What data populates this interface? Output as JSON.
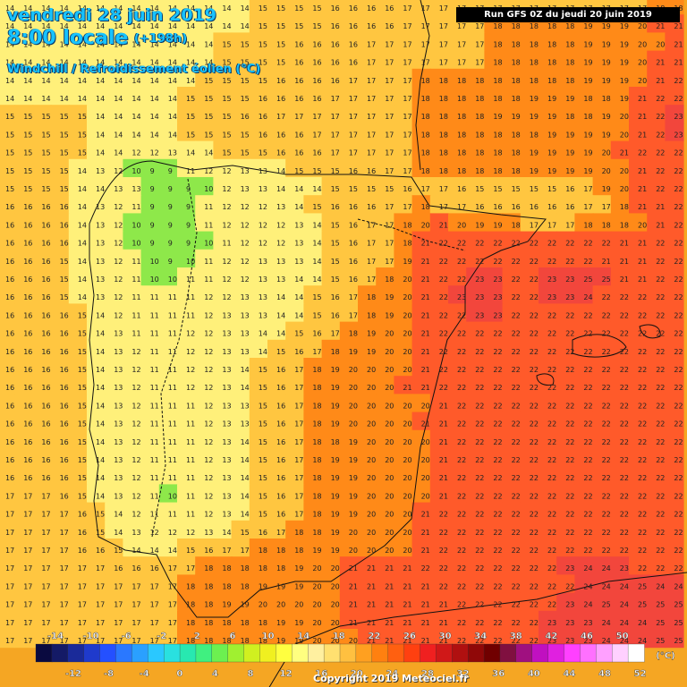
{
  "header": {
    "date": "vendredi 28 juin 2019",
    "time": "8:00 locale",
    "offset": "(+198h)",
    "variable": "Windchill / Refroidissement éolien (°C)",
    "run": "Run GFS 0Z du jeudi 20 juin 2019"
  },
  "legend": {
    "unit": "(°C)",
    "top_labels": [
      "-14",
      "-10",
      "-6",
      "-2",
      "2",
      "6",
      "10",
      "14",
      "18",
      "22",
      "26",
      "30",
      "34",
      "38",
      "42",
      "46",
      "50"
    ],
    "bottom_labels": [
      "-12",
      "-8",
      "-4",
      "0",
      "4",
      "8",
      "12",
      "16",
      "20",
      "24",
      "28",
      "32",
      "36",
      "40",
      "44",
      "48",
      "52"
    ],
    "colors": [
      "#0a0a40",
      "#141a66",
      "#1a2a99",
      "#1f3acc",
      "#2450ff",
      "#2a78ff",
      "#2aa0ff",
      "#2ac8ff",
      "#29e0e0",
      "#28e8b0",
      "#40f080",
      "#6cf050",
      "#a0f030",
      "#d0f020",
      "#f0f020",
      "#ffff40",
      "#ffff80",
      "#fff0a0",
      "#ffe070",
      "#ffc040",
      "#ffa020",
      "#ff8010",
      "#ff6010",
      "#ff4010",
      "#f02020",
      "#d01818",
      "#b01010",
      "#900808",
      "#700000",
      "#801040",
      "#a01080",
      "#c010c0",
      "#e020e0",
      "#ff40ff",
      "#ff70ff",
      "#ffa0ff",
      "#ffd0ff",
      "#ffffff"
    ]
  },
  "copyright": "Copyright 2019 Meteociel.fr",
  "map_colors": {
    "cold": "#8ee84a",
    "cool": "#fff07a",
    "mild": "#ffc640",
    "warm": "#ff8a18",
    "hot": "#ff5a2a",
    "sea_hot": "#f2463c"
  },
  "grid_values": [
    [
      14,
      14,
      14,
      14,
      14,
      14,
      14,
      14,
      14,
      14,
      14,
      14,
      14,
      14,
      15,
      15,
      15,
      15,
      16,
      16,
      16,
      16,
      17,
      17,
      17,
      17,
      17,
      17,
      17,
      17,
      17,
      17,
      17,
      17,
      17,
      17,
      18,
      18
    ],
    [
      14,
      14,
      14,
      14,
      14,
      14,
      14,
      14,
      14,
      14,
      14,
      14,
      14,
      14,
      15,
      15,
      15,
      15,
      16,
      16,
      16,
      16,
      17,
      17,
      17,
      17,
      17,
      18,
      18,
      18,
      18,
      18,
      19,
      19,
      19,
      20,
      21,
      21
    ],
    [
      14,
      14,
      14,
      14,
      14,
      14,
      14,
      14,
      14,
      14,
      14,
      14,
      15,
      15,
      15,
      15,
      16,
      16,
      16,
      16,
      17,
      17,
      17,
      17,
      17,
      17,
      17,
      18,
      18,
      18,
      18,
      18,
      19,
      19,
      19,
      20,
      20,
      21
    ],
    [
      14,
      14,
      14,
      14,
      14,
      14,
      14,
      14,
      14,
      14,
      14,
      14,
      15,
      15,
      15,
      15,
      16,
      16,
      16,
      16,
      17,
      17,
      17,
      17,
      17,
      17,
      17,
      18,
      18,
      18,
      18,
      18,
      19,
      19,
      19,
      20,
      21,
      21
    ],
    [
      14,
      14,
      14,
      14,
      14,
      14,
      14,
      14,
      14,
      14,
      14,
      15,
      15,
      15,
      15,
      16,
      16,
      16,
      16,
      17,
      17,
      17,
      17,
      18,
      18,
      18,
      18,
      18,
      18,
      18,
      18,
      18,
      19,
      19,
      19,
      20,
      21,
      22
    ],
    [
      14,
      14,
      14,
      14,
      14,
      14,
      14,
      14,
      14,
      14,
      15,
      15,
      15,
      15,
      16,
      16,
      16,
      16,
      17,
      17,
      17,
      17,
      17,
      18,
      18,
      18,
      18,
      18,
      18,
      19,
      19,
      19,
      18,
      18,
      19,
      21,
      22,
      22
    ],
    [
      15,
      15,
      15,
      15,
      15,
      14,
      14,
      14,
      14,
      14,
      15,
      15,
      15,
      16,
      16,
      17,
      17,
      17,
      17,
      17,
      17,
      17,
      17,
      18,
      18,
      18,
      18,
      19,
      19,
      19,
      19,
      18,
      18,
      19,
      20,
      21,
      22,
      23
    ],
    [
      15,
      15,
      15,
      15,
      15,
      14,
      14,
      14,
      14,
      14,
      15,
      15,
      15,
      15,
      16,
      16,
      16,
      17,
      17,
      17,
      17,
      17,
      17,
      18,
      18,
      18,
      18,
      18,
      18,
      18,
      19,
      19,
      19,
      19,
      20,
      21,
      22,
      23
    ],
    [
      15,
      15,
      15,
      15,
      15,
      14,
      14,
      12,
      12,
      13,
      14,
      14,
      15,
      15,
      15,
      16,
      16,
      16,
      17,
      17,
      17,
      17,
      17,
      18,
      18,
      18,
      18,
      18,
      18,
      19,
      19,
      19,
      19,
      20,
      21,
      22,
      22,
      22
    ],
    [
      15,
      15,
      15,
      15,
      14,
      13,
      12,
      10,
      9,
      9,
      11,
      12,
      12,
      13,
      13,
      14,
      15,
      15,
      15,
      16,
      16,
      17,
      17,
      18,
      18,
      18,
      18,
      18,
      18,
      19,
      19,
      19,
      19,
      20,
      20,
      21,
      22,
      22
    ],
    [
      15,
      15,
      15,
      15,
      14,
      14,
      13,
      13,
      9,
      9,
      9,
      10,
      12,
      13,
      13,
      14,
      14,
      14,
      15,
      15,
      15,
      15,
      16,
      17,
      17,
      16,
      15,
      15,
      15,
      15,
      15,
      16,
      17,
      19,
      20,
      21,
      22,
      22
    ],
    [
      16,
      16,
      16,
      16,
      14,
      13,
      12,
      11,
      9,
      9,
      9,
      11,
      12,
      12,
      12,
      13,
      14,
      15,
      16,
      16,
      16,
      17,
      17,
      18,
      17,
      17,
      16,
      16,
      16,
      16,
      16,
      16,
      17,
      17,
      18,
      21,
      21,
      22
    ],
    [
      16,
      16,
      16,
      16,
      14,
      13,
      12,
      10,
      9,
      9,
      9,
      11,
      12,
      12,
      12,
      12,
      13,
      14,
      15,
      16,
      17,
      17,
      18,
      20,
      21,
      20,
      19,
      19,
      18,
      17,
      17,
      17,
      18,
      18,
      18,
      20,
      21,
      22
    ],
    [
      16,
      16,
      16,
      16,
      14,
      13,
      12,
      10,
      9,
      9,
      9,
      10,
      11,
      12,
      12,
      12,
      13,
      14,
      15,
      16,
      17,
      17,
      18,
      21,
      22,
      22,
      22,
      22,
      22,
      22,
      22,
      22,
      22,
      22,
      21,
      21,
      22,
      22
    ],
    [
      16,
      16,
      16,
      15,
      14,
      13,
      12,
      11,
      10,
      9,
      10,
      11,
      12,
      12,
      13,
      13,
      13,
      14,
      15,
      16,
      17,
      17,
      19,
      21,
      22,
      22,
      22,
      22,
      22,
      22,
      22,
      22,
      22,
      21,
      21,
      21,
      22,
      22
    ],
    [
      16,
      16,
      16,
      15,
      14,
      13,
      12,
      11,
      10,
      10,
      11,
      11,
      12,
      12,
      13,
      13,
      14,
      14,
      15,
      16,
      17,
      18,
      20,
      21,
      22,
      22,
      23,
      23,
      22,
      22,
      23,
      23,
      25,
      25,
      21,
      21,
      22,
      22
    ],
    [
      16,
      16,
      16,
      15,
      14,
      13,
      12,
      11,
      11,
      11,
      11,
      12,
      12,
      13,
      13,
      14,
      14,
      15,
      16,
      17,
      18,
      19,
      20,
      21,
      22,
      23,
      23,
      23,
      22,
      22,
      23,
      23,
      24,
      22,
      22,
      22,
      22,
      22
    ],
    [
      16,
      16,
      16,
      16,
      15,
      14,
      12,
      11,
      11,
      11,
      11,
      12,
      13,
      13,
      13,
      14,
      14,
      15,
      16,
      17,
      18,
      19,
      20,
      21,
      22,
      22,
      23,
      23,
      22,
      22,
      22,
      22,
      22,
      22,
      22,
      22,
      22,
      22
    ],
    [
      16,
      16,
      16,
      16,
      15,
      14,
      13,
      11,
      11,
      11,
      12,
      12,
      13,
      13,
      14,
      14,
      15,
      16,
      17,
      18,
      19,
      20,
      20,
      21,
      22,
      22,
      22,
      22,
      22,
      22,
      22,
      22,
      22,
      22,
      22,
      22,
      22,
      22
    ],
    [
      16,
      16,
      16,
      16,
      15,
      14,
      13,
      12,
      11,
      11,
      12,
      12,
      13,
      13,
      14,
      15,
      16,
      17,
      18,
      19,
      19,
      20,
      20,
      21,
      22,
      22,
      22,
      22,
      22,
      22,
      22,
      22,
      22,
      22,
      22,
      22,
      22,
      22
    ],
    [
      16,
      16,
      16,
      16,
      15,
      14,
      13,
      12,
      11,
      11,
      12,
      12,
      13,
      14,
      15,
      16,
      17,
      18,
      19,
      20,
      20,
      20,
      20,
      21,
      22,
      22,
      22,
      22,
      22,
      22,
      22,
      22,
      22,
      22,
      22,
      22,
      22,
      22
    ],
    [
      16,
      16,
      16,
      16,
      15,
      14,
      13,
      12,
      11,
      11,
      12,
      12,
      13,
      14,
      15,
      16,
      17,
      18,
      19,
      20,
      20,
      20,
      21,
      21,
      22,
      22,
      22,
      22,
      22,
      22,
      22,
      22,
      22,
      22,
      22,
      22,
      22,
      22
    ],
    [
      16,
      16,
      16,
      16,
      15,
      14,
      13,
      12,
      11,
      11,
      11,
      12,
      13,
      13,
      15,
      16,
      17,
      18,
      19,
      20,
      20,
      20,
      20,
      20,
      21,
      22,
      22,
      22,
      22,
      22,
      22,
      22,
      22,
      22,
      22,
      22,
      22,
      22
    ],
    [
      16,
      16,
      16,
      16,
      15,
      14,
      13,
      12,
      11,
      11,
      11,
      12,
      13,
      13,
      15,
      16,
      17,
      18,
      19,
      20,
      20,
      20,
      20,
      21,
      21,
      22,
      22,
      22,
      22,
      22,
      22,
      22,
      22,
      22,
      22,
      22,
      22,
      22
    ],
    [
      16,
      16,
      16,
      16,
      15,
      14,
      13,
      12,
      11,
      11,
      11,
      12,
      13,
      14,
      15,
      16,
      17,
      18,
      18,
      19,
      20,
      20,
      20,
      20,
      21,
      22,
      22,
      22,
      22,
      22,
      22,
      22,
      22,
      22,
      22,
      22,
      22,
      22
    ],
    [
      16,
      16,
      16,
      16,
      15,
      14,
      13,
      12,
      11,
      11,
      11,
      12,
      13,
      14,
      15,
      16,
      17,
      18,
      19,
      19,
      20,
      20,
      20,
      20,
      21,
      22,
      22,
      22,
      22,
      22,
      22,
      22,
      22,
      22,
      22,
      22,
      22,
      22
    ],
    [
      16,
      16,
      16,
      16,
      15,
      14,
      13,
      12,
      11,
      11,
      11,
      12,
      13,
      14,
      15,
      16,
      17,
      18,
      19,
      19,
      20,
      20,
      20,
      20,
      21,
      22,
      22,
      22,
      22,
      22,
      22,
      22,
      22,
      22,
      22,
      22,
      22,
      22
    ],
    [
      17,
      17,
      17,
      16,
      15,
      14,
      13,
      12,
      11,
      10,
      11,
      12,
      13,
      14,
      15,
      16,
      17,
      18,
      19,
      19,
      20,
      20,
      20,
      20,
      21,
      22,
      22,
      22,
      22,
      22,
      22,
      22,
      22,
      22,
      22,
      22,
      22,
      22
    ],
    [
      17,
      17,
      17,
      17,
      16,
      15,
      14,
      12,
      11,
      11,
      11,
      12,
      13,
      14,
      15,
      16,
      17,
      18,
      19,
      19,
      20,
      20,
      20,
      21,
      22,
      22,
      22,
      22,
      22,
      22,
      22,
      22,
      22,
      22,
      22,
      22,
      22,
      22
    ],
    [
      17,
      17,
      17,
      17,
      16,
      15,
      14,
      13,
      12,
      12,
      12,
      13,
      14,
      15,
      16,
      17,
      18,
      18,
      19,
      20,
      20,
      20,
      20,
      21,
      22,
      22,
      22,
      22,
      22,
      22,
      22,
      22,
      22,
      22,
      22,
      22,
      22,
      22
    ],
    [
      17,
      17,
      17,
      17,
      16,
      16,
      15,
      14,
      14,
      14,
      15,
      16,
      17,
      17,
      18,
      18,
      18,
      19,
      19,
      20,
      20,
      20,
      20,
      21,
      22,
      22,
      22,
      22,
      22,
      22,
      22,
      22,
      22,
      22,
      22,
      22,
      22,
      22
    ],
    [
      17,
      17,
      17,
      17,
      17,
      17,
      16,
      16,
      16,
      17,
      17,
      18,
      18,
      18,
      18,
      18,
      19,
      20,
      20,
      21,
      21,
      21,
      21,
      22,
      22,
      22,
      22,
      22,
      22,
      22,
      22,
      23,
      24,
      24,
      23,
      22,
      22,
      22
    ],
    [
      17,
      17,
      17,
      17,
      17,
      17,
      17,
      17,
      17,
      17,
      18,
      18,
      18,
      18,
      19,
      19,
      19,
      20,
      20,
      21,
      21,
      21,
      21,
      21,
      22,
      22,
      22,
      22,
      22,
      22,
      22,
      22,
      24,
      24,
      24,
      25,
      24,
      24
    ],
    [
      17,
      17,
      17,
      17,
      17,
      17,
      17,
      17,
      17,
      17,
      18,
      18,
      19,
      19,
      20,
      20,
      20,
      20,
      20,
      21,
      21,
      21,
      21,
      21,
      21,
      22,
      22,
      22,
      22,
      22,
      22,
      23,
      24,
      25,
      24,
      25,
      25,
      25
    ],
    [
      17,
      17,
      17,
      17,
      17,
      17,
      17,
      17,
      17,
      17,
      18,
      18,
      18,
      18,
      18,
      19,
      19,
      20,
      20,
      21,
      21,
      21,
      21,
      21,
      21,
      22,
      22,
      22,
      22,
      22,
      23,
      23,
      23,
      24,
      24,
      24,
      25,
      25
    ],
    [
      17,
      17,
      17,
      17,
      17,
      17,
      17,
      17,
      17,
      17,
      18,
      18,
      18,
      18,
      18,
      19,
      19,
      20,
      20,
      20,
      21,
      21,
      21,
      21,
      21,
      22,
      22,
      22,
      22,
      22,
      23,
      23,
      23,
      24,
      24,
      24,
      25,
      25
    ]
  ]
}
